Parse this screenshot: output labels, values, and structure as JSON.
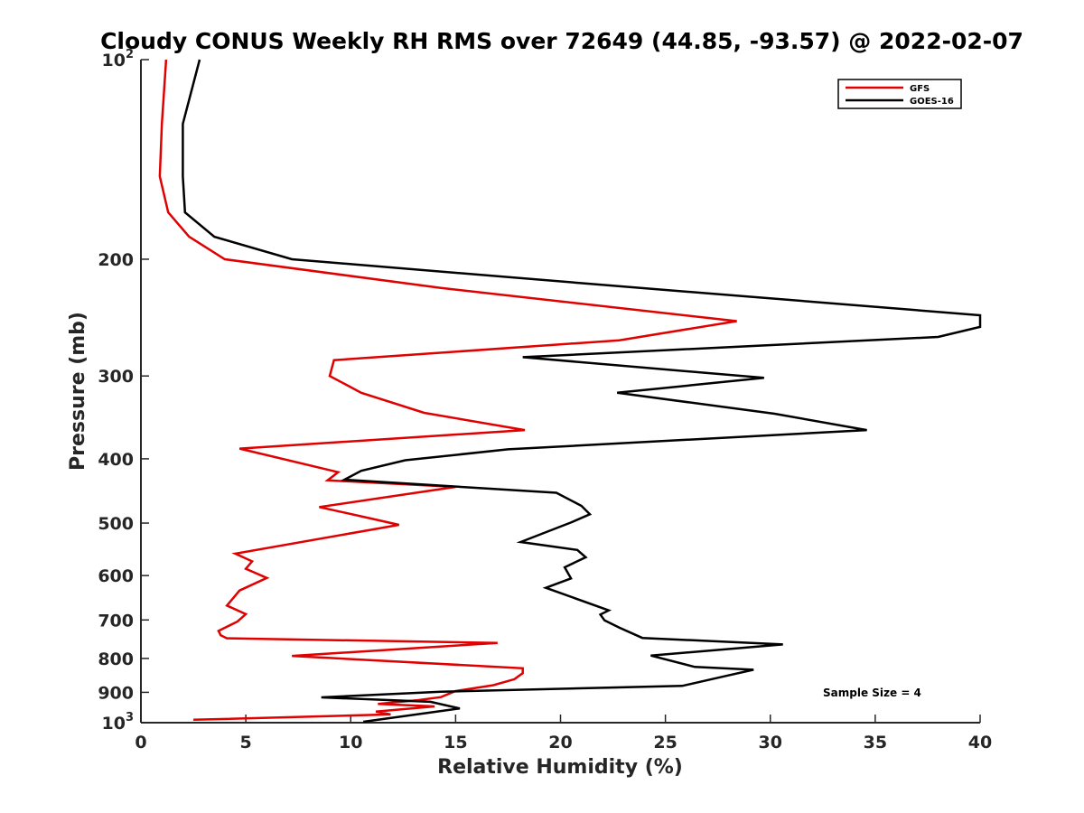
{
  "chart_data": {
    "type": "line",
    "title": "Cloudy CONUS Weekly RH RMS over 72649 (44.85, -93.57) @ 2022-02-07",
    "xlabel": "Relative Humidity (%)",
    "ylabel": "Pressure (mb)",
    "xlim": [
      0,
      40
    ],
    "ylim": [
      100,
      1000
    ],
    "y_scale": "log",
    "y_reversed": true,
    "x_ticks": [
      "0",
      "5",
      "10",
      "15",
      "20",
      "25",
      "30",
      "35",
      "40"
    ],
    "y_ticks": [
      {
        "value": 100,
        "base": "10",
        "exp": "2"
      },
      {
        "value": 200,
        "label": "200"
      },
      {
        "value": 300,
        "label": "300"
      },
      {
        "value": 400,
        "label": "400"
      },
      {
        "value": 500,
        "label": "500"
      },
      {
        "value": 600,
        "label": "600"
      },
      {
        "value": 700,
        "label": "700"
      },
      {
        "value": 800,
        "label": "800"
      },
      {
        "value": 900,
        "label": "900"
      },
      {
        "value": 1000,
        "base": "10",
        "exp": "3"
      }
    ],
    "grid": false,
    "legend_position": "top-right",
    "annotation": "Sample Size = 4",
    "series": [
      {
        "name": "GFS",
        "color": "#e00000",
        "points": [
          [
            1.2,
            100
          ],
          [
            1.0,
            125
          ],
          [
            0.9,
            150
          ],
          [
            1.3,
            170
          ],
          [
            2.3,
            185
          ],
          [
            4.0,
            200
          ],
          [
            14.3,
            221
          ],
          [
            28.4,
            248
          ],
          [
            22.8,
            265
          ],
          [
            9.2,
            284
          ],
          [
            9.0,
            300
          ],
          [
            10.5,
            318
          ],
          [
            13.5,
            341
          ],
          [
            18.3,
            362
          ],
          [
            4.7,
            386
          ],
          [
            9.4,
            419
          ],
          [
            8.9,
            431
          ],
          [
            15.0,
            441
          ],
          [
            8.5,
            473
          ],
          [
            10.7,
            490
          ],
          [
            12.3,
            503
          ],
          [
            4.5,
            556
          ],
          [
            5.3,
            571
          ],
          [
            5.0,
            586
          ],
          [
            6.0,
            605
          ],
          [
            4.7,
            632
          ],
          [
            4.1,
            666
          ],
          [
            5.0,
            686
          ],
          [
            4.6,
            704
          ],
          [
            3.7,
            727
          ],
          [
            3.8,
            738
          ],
          [
            4.1,
            746
          ],
          [
            17.0,
            758
          ],
          [
            7.2,
            793
          ],
          [
            18.2,
            828
          ],
          [
            18.2,
            842
          ],
          [
            17.8,
            860
          ],
          [
            16.8,
            878
          ],
          [
            15.0,
            896
          ],
          [
            14.3,
            915
          ],
          [
            13.2,
            925
          ],
          [
            11.3,
            937
          ],
          [
            14.0,
            945
          ],
          [
            11.2,
            962
          ],
          [
            11.9,
            972
          ],
          [
            2.5,
            990
          ]
        ]
      },
      {
        "name": "GOES-16",
        "color": "#000000",
        "points": [
          [
            2.8,
            100
          ],
          [
            2.0,
            125
          ],
          [
            2.0,
            150
          ],
          [
            2.1,
            170
          ],
          [
            3.5,
            185
          ],
          [
            7.2,
            200
          ],
          [
            21.5,
            218
          ],
          [
            40.0,
            243
          ],
          [
            40.0,
            253
          ],
          [
            38.0,
            262
          ],
          [
            18.2,
            281
          ],
          [
            29.7,
            302
          ],
          [
            22.7,
            318
          ],
          [
            30.2,
            342
          ],
          [
            34.6,
            362
          ],
          [
            17.5,
            387
          ],
          [
            12.6,
            402
          ],
          [
            10.5,
            417
          ],
          [
            9.7,
            430
          ],
          [
            19.8,
            450
          ],
          [
            21.0,
            471
          ],
          [
            21.4,
            485
          ],
          [
            20.5,
            499
          ],
          [
            18.1,
            534
          ],
          [
            20.8,
            549
          ],
          [
            21.2,
            563
          ],
          [
            20.2,
            583
          ],
          [
            20.5,
            606
          ],
          [
            19.3,
            626
          ],
          [
            22.3,
            677
          ],
          [
            21.9,
            687
          ],
          [
            22.1,
            701
          ],
          [
            22.8,
            719
          ],
          [
            23.9,
            745
          ],
          [
            30.6,
            762
          ],
          [
            24.3,
            792
          ],
          [
            26.4,
            824
          ],
          [
            29.2,
            832
          ],
          [
            27.9,
            850
          ],
          [
            25.8,
            880
          ],
          [
            14.3,
            898
          ],
          [
            8.6,
            916
          ],
          [
            13.8,
            930
          ],
          [
            15.2,
            952
          ],
          [
            10.6,
            997
          ]
        ]
      }
    ]
  }
}
